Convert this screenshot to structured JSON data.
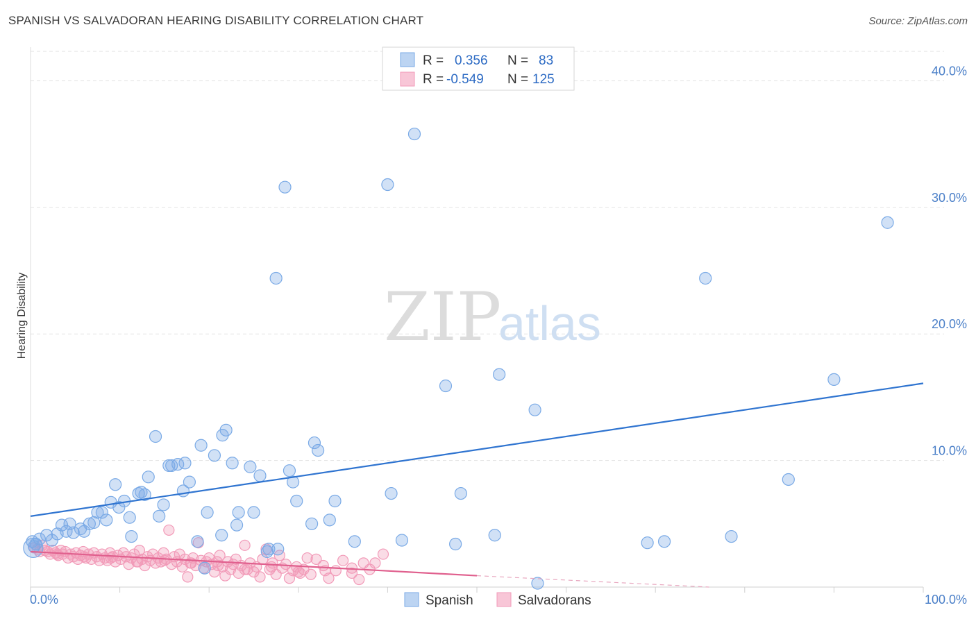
{
  "title": "SPANISH VS SALVADORAN HEARING DISABILITY CORRELATION CHART",
  "source": "Source: ZipAtlas.com",
  "watermark": {
    "zip": "ZIP",
    "atlas": "atlas"
  },
  "chart_data": {
    "type": "scatter",
    "title": "SPANISH VS SALVADORAN HEARING DISABILITY CORRELATION CHART",
    "xlabel": "",
    "ylabel": "Hearing Disability",
    "xlim": [
      0,
      100
    ],
    "ylim": [
      0,
      42
    ],
    "x_ticks": [
      {
        "value": 0,
        "label": "0.0%"
      },
      {
        "value": 100,
        "label": "100.0%"
      }
    ],
    "y_ticks": [
      {
        "value": 10,
        "label": "10.0%"
      },
      {
        "value": 20,
        "label": "20.0%"
      },
      {
        "value": 30,
        "label": "30.0%"
      },
      {
        "value": 40,
        "label": "40.0%"
      }
    ],
    "legend": {
      "placement": "top-center",
      "entries": [
        {
          "r_label": "R =",
          "r_value": "0.356",
          "n_label": "N =",
          "n_value": "83"
        },
        {
          "r_label": "R =",
          "r_value": "-0.549",
          "n_label": "N =",
          "n_value": "125"
        }
      ]
    },
    "series": [
      {
        "name": "Spanish",
        "color": "#7aaae6",
        "trend": {
          "x0": 0,
          "y0": 5.6,
          "x1": 100,
          "y1": 16.1,
          "color": "#2f74d0"
        },
        "points": [
          [
            0.2,
            3.6
          ],
          [
            0.4,
            3.2
          ],
          [
            0.6,
            3.4
          ],
          [
            1.0,
            3.8
          ],
          [
            1.8,
            4.1
          ],
          [
            2.4,
            3.7
          ],
          [
            3.0,
            4.2
          ],
          [
            3.5,
            4.9
          ],
          [
            4.0,
            4.4
          ],
          [
            4.4,
            5.0
          ],
          [
            4.8,
            4.3
          ],
          [
            5.6,
            4.6
          ],
          [
            6.0,
            4.4
          ],
          [
            6.6,
            5.0
          ],
          [
            7.1,
            5.1
          ],
          [
            7.5,
            5.9
          ],
          [
            8.0,
            5.9
          ],
          [
            8.5,
            5.3
          ],
          [
            9.0,
            6.7
          ],
          [
            9.5,
            8.1
          ],
          [
            9.9,
            6.3
          ],
          [
            10.5,
            6.8
          ],
          [
            11.1,
            5.5
          ],
          [
            11.3,
            4.0
          ],
          [
            12.1,
            7.4
          ],
          [
            12.4,
            7.5
          ],
          [
            12.8,
            7.3
          ],
          [
            13.2,
            8.7
          ],
          [
            14.0,
            11.9
          ],
          [
            14.4,
            5.6
          ],
          [
            14.9,
            6.5
          ],
          [
            15.5,
            9.6
          ],
          [
            15.8,
            9.6
          ],
          [
            16.5,
            9.7
          ],
          [
            17.1,
            7.6
          ],
          [
            17.3,
            9.8
          ],
          [
            17.8,
            8.3
          ],
          [
            18.7,
            3.6
          ],
          [
            19.1,
            11.2
          ],
          [
            19.5,
            1.5
          ],
          [
            19.8,
            5.9
          ],
          [
            20.6,
            10.4
          ],
          [
            21.4,
            4.1
          ],
          [
            21.5,
            12.0
          ],
          [
            21.9,
            12.4
          ],
          [
            22.6,
            9.8
          ],
          [
            23.1,
            4.9
          ],
          [
            23.3,
            5.9
          ],
          [
            24.6,
            9.5
          ],
          [
            25.0,
            5.9
          ],
          [
            25.7,
            8.8
          ],
          [
            26.5,
            2.8
          ],
          [
            26.7,
            3.0
          ],
          [
            27.5,
            24.4
          ],
          [
            27.7,
            3.0
          ],
          [
            28.5,
            31.6
          ],
          [
            29.0,
            9.2
          ],
          [
            29.4,
            8.3
          ],
          [
            29.8,
            6.8
          ],
          [
            31.5,
            5.0
          ],
          [
            31.8,
            11.4
          ],
          [
            32.2,
            10.8
          ],
          [
            33.5,
            5.3
          ],
          [
            34.1,
            6.8
          ],
          [
            36.3,
            3.6
          ],
          [
            40.0,
            31.8
          ],
          [
            40.4,
            7.4
          ],
          [
            41.6,
            3.7
          ],
          [
            43.0,
            35.8
          ],
          [
            46.5,
            15.9
          ],
          [
            47.6,
            3.4
          ],
          [
            48.2,
            7.4
          ],
          [
            52.0,
            4.1
          ],
          [
            52.5,
            16.8
          ],
          [
            56.5,
            14.0
          ],
          [
            56.8,
            0.3
          ],
          [
            69.1,
            3.5
          ],
          [
            71.0,
            3.6
          ],
          [
            75.6,
            24.4
          ],
          [
            78.5,
            4.0
          ],
          [
            84.9,
            8.5
          ],
          [
            90.0,
            16.4
          ],
          [
            96.0,
            28.8
          ]
        ]
      },
      {
        "name": "Salvadorans",
        "color": "#f29ab8",
        "trend": {
          "x0": 0,
          "y0": 2.8,
          "x1": 50,
          "y1": 0.9,
          "color": "#e0608e",
          "dashed_to_x": 76,
          "dashed_to_y": 0.0
        },
        "points": [
          [
            0.4,
            3.1
          ],
          [
            0.8,
            3.0
          ],
          [
            1.0,
            2.8
          ],
          [
            1.3,
            3.3
          ],
          [
            1.6,
            2.9
          ],
          [
            1.9,
            2.8
          ],
          [
            2.2,
            2.6
          ],
          [
            2.5,
            2.9
          ],
          [
            2.8,
            2.7
          ],
          [
            3.1,
            2.5
          ],
          [
            3.4,
            2.9
          ],
          [
            3.6,
            2.6
          ],
          [
            3.9,
            2.8
          ],
          [
            4.2,
            2.3
          ],
          [
            4.5,
            2.6
          ],
          [
            4.8,
            2.4
          ],
          [
            5.1,
            2.7
          ],
          [
            5.3,
            2.2
          ],
          [
            5.6,
            2.5
          ],
          [
            5.9,
            2.8
          ],
          [
            6.2,
            2.3
          ],
          [
            6.5,
            2.6
          ],
          [
            6.8,
            2.2
          ],
          [
            7.1,
            2.7
          ],
          [
            7.4,
            2.4
          ],
          [
            7.7,
            2.1
          ],
          [
            8.0,
            2.6
          ],
          [
            8.3,
            2.3
          ],
          [
            8.6,
            2.1
          ],
          [
            8.9,
            2.7
          ],
          [
            9.2,
            2.4
          ],
          [
            9.5,
            2.0
          ],
          [
            9.8,
            2.5
          ],
          [
            10.1,
            2.2
          ],
          [
            10.4,
            2.7
          ],
          [
            10.7,
            2.4
          ],
          [
            11.0,
            1.8
          ],
          [
            11.3,
            2.3
          ],
          [
            11.6,
            2.6
          ],
          [
            11.9,
            2.0
          ],
          [
            12.2,
            2.9
          ],
          [
            12.5,
            2.2
          ],
          [
            12.8,
            1.7
          ],
          [
            13.1,
            2.4
          ],
          [
            13.4,
            2.1
          ],
          [
            13.7,
            2.6
          ],
          [
            14.0,
            1.9
          ],
          [
            14.3,
            2.3
          ],
          [
            14.6,
            2.0
          ],
          [
            14.9,
            2.7
          ],
          [
            15.2,
            2.2
          ],
          [
            15.5,
            4.5
          ],
          [
            15.8,
            1.8
          ],
          [
            16.1,
            2.4
          ],
          [
            16.4,
            2.0
          ],
          [
            16.7,
            2.6
          ],
          [
            17.0,
            1.6
          ],
          [
            17.3,
            2.2
          ],
          [
            17.6,
            0.8
          ],
          [
            17.9,
            1.9
          ],
          [
            18.2,
            2.3
          ],
          [
            18.5,
            1.7
          ],
          [
            18.8,
            3.5
          ],
          [
            19.1,
            2.1
          ],
          [
            19.4,
            1.5
          ],
          [
            19.7,
            2.0
          ],
          [
            20.0,
            2.3
          ],
          [
            20.3,
            1.8
          ],
          [
            20.6,
            1.2
          ],
          [
            20.9,
            2.0
          ],
          [
            21.2,
            2.5
          ],
          [
            21.5,
            1.6
          ],
          [
            21.8,
            0.9
          ],
          [
            22.1,
            2.0
          ],
          [
            22.4,
            1.4
          ],
          [
            22.7,
            1.8
          ],
          [
            23.0,
            2.2
          ],
          [
            23.3,
            1.1
          ],
          [
            23.6,
            1.7
          ],
          [
            24.0,
            3.3
          ],
          [
            24.3,
            1.4
          ],
          [
            24.6,
            1.9
          ],
          [
            25.0,
            1.2
          ],
          [
            25.3,
            1.6
          ],
          [
            25.7,
            0.8
          ],
          [
            26.0,
            2.2
          ],
          [
            26.4,
            3.0
          ],
          [
            26.8,
            1.4
          ],
          [
            27.1,
            1.9
          ],
          [
            27.5,
            1.0
          ],
          [
            27.9,
            2.5
          ],
          [
            28.2,
            1.5
          ],
          [
            28.6,
            1.8
          ],
          [
            29.0,
            0.7
          ],
          [
            29.4,
            1.3
          ],
          [
            29.8,
            1.6
          ],
          [
            30.2,
            1.1
          ],
          [
            30.6,
            1.4
          ],
          [
            31.0,
            2.3
          ],
          [
            31.4,
            1.0
          ],
          [
            32.0,
            2.2
          ],
          [
            32.8,
            1.7
          ],
          [
            33.4,
            0.7
          ],
          [
            34.2,
            1.3
          ],
          [
            35.0,
            2.1
          ],
          [
            36.0,
            1.5
          ],
          [
            36.8,
            0.6
          ],
          [
            37.3,
            1.9
          ],
          [
            38.0,
            1.4
          ],
          [
            38.6,
            1.9
          ],
          [
            39.5,
            2.6
          ],
          [
            3.0,
            2.6
          ],
          [
            6.0,
            2.4
          ],
          [
            9.0,
            2.3
          ],
          [
            12.0,
            2.0
          ],
          [
            15.0,
            2.1
          ],
          [
            18.0,
            1.9
          ],
          [
            21.0,
            1.7
          ],
          [
            24.0,
            1.4
          ],
          [
            27.0,
            1.6
          ],
          [
            30.0,
            1.2
          ],
          [
            33.0,
            1.3
          ],
          [
            36.0,
            1.1
          ]
        ]
      }
    ]
  }
}
